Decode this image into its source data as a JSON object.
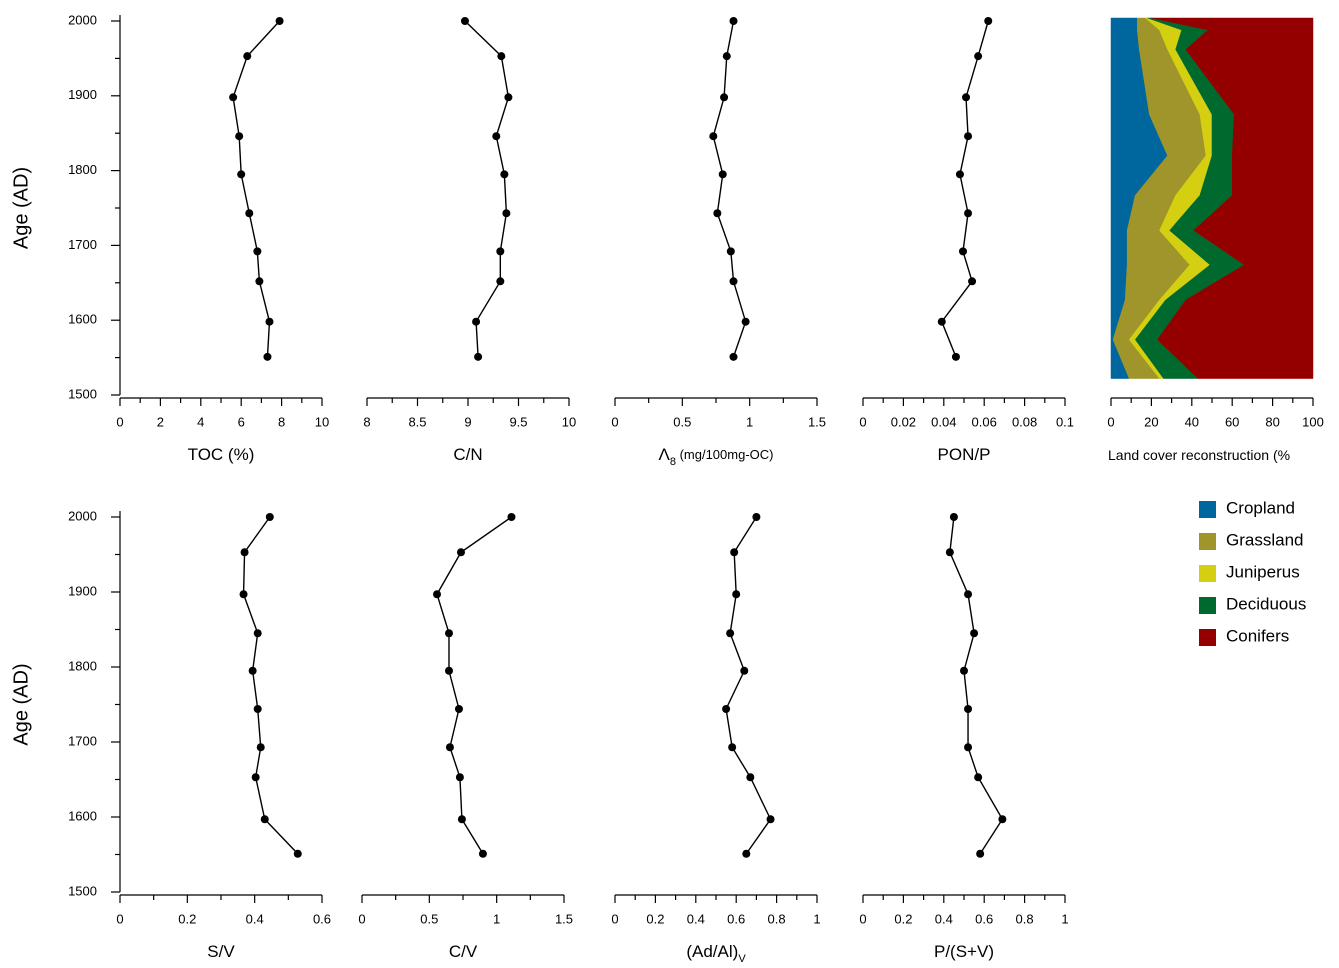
{
  "chart_data": [
    {
      "type": "line",
      "xlabel": "TOC (%)",
      "y": [
        2000,
        1953,
        1898,
        1846,
        1795,
        1743,
        1692,
        1652,
        1598,
        1551
      ],
      "values": [
        7.9,
        6.3,
        5.6,
        5.9,
        6.0,
        6.4,
        6.8,
        6.9,
        7.4,
        7.3
      ],
      "color": "#000000",
      "xlim": [
        0,
        10
      ],
      "xticks": [
        0,
        2,
        4,
        6,
        8,
        10
      ],
      "ylim": [
        1500,
        2000
      ],
      "yticks": [
        1500,
        1600,
        1700,
        1800,
        1900,
        2000
      ],
      "ylabel": "Age (AD)"
    },
    {
      "type": "line",
      "xlabel": "C/N",
      "y": [
        2000,
        1953,
        1898,
        1846,
        1795,
        1743,
        1692,
        1652,
        1598,
        1551
      ],
      "values": [
        8.97,
        9.33,
        9.4,
        9.28,
        9.36,
        9.38,
        9.32,
        9.32,
        9.08,
        9.1
      ],
      "color": "#000000",
      "xlim": [
        8,
        10
      ],
      "xticks": [
        8,
        8.5,
        9,
        9.5,
        10
      ],
      "ylim": [
        1500,
        2000
      ]
    },
    {
      "type": "line",
      "xlabel": "Λ",
      "xlabel_sub": "8",
      "xlabel_suffix": " (mg/100mg-OC)",
      "y": [
        2000,
        1953,
        1898,
        1846,
        1795,
        1743,
        1692,
        1652,
        1598,
        1551
      ],
      "values": [
        0.88,
        0.83,
        0.81,
        0.73,
        0.8,
        0.76,
        0.86,
        0.88,
        0.97,
        0.88
      ],
      "color": "#000000",
      "xlim": [
        0,
        1.5
      ],
      "xticks": [
        0,
        0.5,
        1,
        1.5
      ],
      "ylim": [
        1500,
        2000
      ]
    },
    {
      "type": "line",
      "xlabel": "PON/P",
      "y": [
        2000,
        1953,
        1898,
        1846,
        1795,
        1743,
        1692,
        1652,
        1598,
        1551
      ],
      "values": [
        0.062,
        0.057,
        0.051,
        0.052,
        0.048,
        0.052,
        0.0495,
        0.054,
        0.039,
        0.046
      ],
      "color": "#000000",
      "xlim": [
        0,
        0.1
      ],
      "xticks": [
        0,
        0.02,
        0.04,
        0.06,
        0.08,
        0.1
      ],
      "ylim": [
        1500,
        2000
      ]
    },
    {
      "type": "area",
      "xlabel": "Land cover reconstruction (%",
      "y": [
        2004,
        1988,
        1962,
        1875,
        1820,
        1767,
        1720,
        1674,
        1627,
        1574,
        1522
      ],
      "series": [
        {
          "name": "Cropland",
          "color": "#00679e",
          "values": [
            13,
            13,
            14,
            19,
            28,
            12,
            8,
            8,
            7,
            1,
            9
          ]
        },
        {
          "name": "Grassland",
          "color": "#a0952a",
          "values": [
            4,
            11,
            14,
            25,
            19,
            20,
            16,
            31,
            17,
            8,
            15
          ]
        },
        {
          "name": "Juniperus",
          "color": "#d4cf10",
          "values": [
            1,
            11,
            4,
            6,
            3,
            12,
            5,
            10,
            3,
            3,
            2
          ]
        },
        {
          "name": "Deciduous",
          "color": "#006a2e",
          "values": [
            2,
            13,
            5,
            11,
            10,
            16,
            12,
            17,
            10,
            11,
            17
          ]
        },
        {
          "name": "Conifers",
          "color": "#940000",
          "values": [
            80,
            52,
            63,
            39,
            40,
            40,
            59,
            34,
            63,
            77,
            57
          ]
        }
      ],
      "xlim": [
        0,
        100
      ],
      "xticks": [
        0,
        20,
        40,
        60,
        80,
        100
      ],
      "ylim": [
        1500,
        2000
      ]
    },
    {
      "type": "line",
      "xlabel": "S/V",
      "y": [
        2000,
        1953,
        1897,
        1845,
        1795,
        1744,
        1693,
        1653,
        1597,
        1551
      ],
      "values": [
        0.445,
        0.37,
        0.367,
        0.409,
        0.394,
        0.409,
        0.418,
        0.403,
        0.43,
        0.528
      ],
      "color": "#000000",
      "xlim": [
        0,
        0.6
      ],
      "xticks": [
        0,
        0.2,
        0.4,
        0.6
      ],
      "ylim": [
        1500,
        2000
      ],
      "yticks": [
        1500,
        1600,
        1700,
        1800,
        1900,
        2000
      ],
      "ylabel": "Age (AD)"
    },
    {
      "type": "line",
      "xlabel": "C/V",
      "y": [
        2000,
        1953,
        1897,
        1845,
        1795,
        1744,
        1693,
        1653,
        1597,
        1551
      ],
      "values": [
        1.11,
        0.735,
        0.557,
        0.646,
        0.646,
        0.72,
        0.653,
        0.727,
        0.742,
        0.898
      ],
      "color": "#000000",
      "xlim": [
        0,
        1.5
      ],
      "xticks": [
        0,
        0.5,
        1,
        1.5
      ],
      "ylim": [
        1500,
        2000
      ]
    },
    {
      "type": "line",
      "xlabel": "(Ad/Al)",
      "xlabel_sub": "V",
      "y": [
        2000,
        1953,
        1897,
        1845,
        1795,
        1744,
        1693,
        1653,
        1597,
        1551
      ],
      "values": [
        0.7,
        0.59,
        0.6,
        0.57,
        0.64,
        0.55,
        0.58,
        0.67,
        0.77,
        0.65
      ],
      "color": "#000000",
      "xlim": [
        0,
        1
      ],
      "xticks": [
        0,
        0.2,
        0.4,
        0.6,
        0.8,
        1
      ],
      "ylim": [
        1500,
        2000
      ]
    },
    {
      "type": "line",
      "xlabel": "P/(S+V)",
      "y": [
        2000,
        1953,
        1897,
        1845,
        1795,
        1744,
        1693,
        1653,
        1597,
        1551
      ],
      "values": [
        0.45,
        0.43,
        0.52,
        0.55,
        0.5,
        0.52,
        0.52,
        0.57,
        0.69,
        0.58
      ],
      "color": "#000000",
      "xlim": [
        0,
        1
      ],
      "xticks": [
        0,
        0.2,
        0.4,
        0.6,
        0.8,
        1
      ],
      "ylim": [
        1500,
        2000
      ]
    }
  ]
}
